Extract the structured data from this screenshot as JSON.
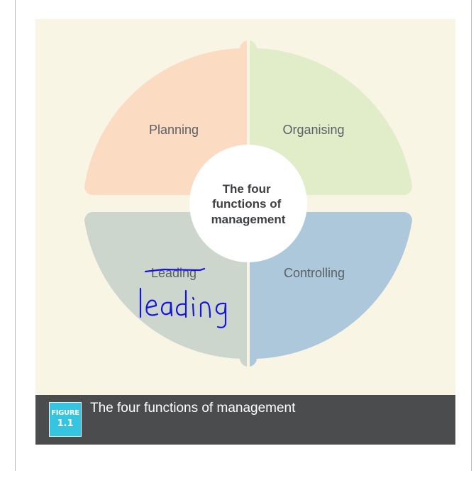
{
  "diagram": {
    "background": "#f8f5e5",
    "quadrants": [
      {
        "id": "planning",
        "label": "Planning",
        "color": "#fcdbc3"
      },
      {
        "id": "organising",
        "label": "Organising",
        "color": "#e1ecc9"
      },
      {
        "id": "leading",
        "label": "Leading",
        "color": "#ccd6cd",
        "struck": true
      },
      {
        "id": "controlling",
        "label": "Controlling",
        "color": "#adc8db"
      }
    ],
    "center": {
      "lines": [
        "The four",
        "functions of",
        "management"
      ],
      "color": "#ffffff"
    },
    "handwriting": {
      "text": "leading",
      "color": "#1515e0"
    }
  },
  "figure": {
    "badge_word": "FIGURE",
    "badge_number": "1.1",
    "caption": "The four functions of management",
    "bar_color": "#4b4c4e",
    "badge_color": "#36c5e0"
  }
}
